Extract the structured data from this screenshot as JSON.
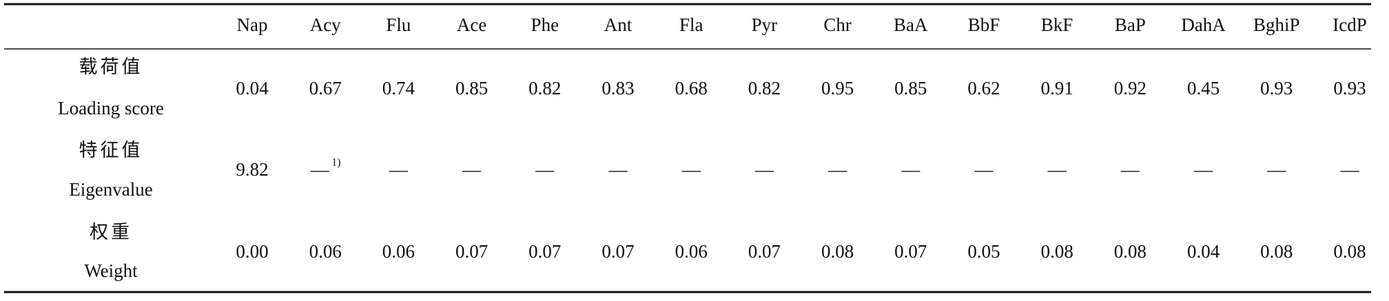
{
  "table": {
    "columns": [
      "Nap",
      "Acy",
      "Flu",
      "Ace",
      "Phe",
      "Ant",
      "Fla",
      "Pyr",
      "Chr",
      "BaA",
      "BbF",
      "BkF",
      "BaP",
      "DahA",
      "BghiP",
      "IcdP"
    ],
    "rows": [
      {
        "label_zh": "载荷值",
        "label_en": "Loading score",
        "cells": [
          "0.04",
          "0.67",
          "0.74",
          "0.85",
          "0.82",
          "0.83",
          "0.68",
          "0.82",
          "0.95",
          "0.85",
          "0.62",
          "0.91",
          "0.92",
          "0.45",
          "0.93",
          "0.93"
        ]
      },
      {
        "label_zh": "特征值",
        "label_en": "Eigenvalue",
        "cells": [
          "9.82",
          {
            "text": "—",
            "note": "1)"
          },
          "—",
          "—",
          "—",
          "—",
          "—",
          "—",
          "—",
          "—",
          "—",
          "—",
          "—",
          "—",
          "—",
          "—"
        ]
      },
      {
        "label_zh": "权重",
        "label_en": "Weight",
        "cells": [
          "0.00",
          "0.06",
          "0.06",
          "0.07",
          "0.07",
          "0.07",
          "0.06",
          "0.07",
          "0.08",
          "0.07",
          "0.05",
          "0.08",
          "0.08",
          "0.04",
          "0.08",
          "0.08"
        ]
      }
    ]
  }
}
